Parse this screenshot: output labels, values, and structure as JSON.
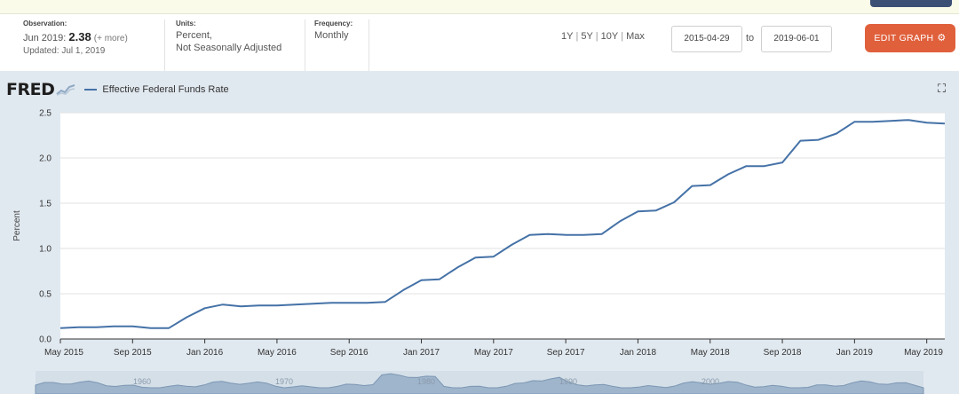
{
  "observation": {
    "heading": "Observation:",
    "period": "Jun 2019:",
    "value": "2.38",
    "more": "(+ more)",
    "updated": "Updated: Jul 1, 2019"
  },
  "units": {
    "heading": "Units:",
    "line1": "Percent,",
    "line2": "Not Seasonally Adjusted"
  },
  "frequency": {
    "heading": "Frequency:",
    "value": "Monthly"
  },
  "ranges": [
    "1Y",
    "5Y",
    "10Y",
    "Max"
  ],
  "date_range": {
    "start": "2015-04-29",
    "to_label": "to",
    "end": "2019-06-01"
  },
  "edit_button": {
    "label": "EDIT GRAPH"
  },
  "brand": {
    "logo": "FRED"
  },
  "colors": {
    "series": "#4572a7",
    "accent": "#e0603c",
    "panel": "#e1e9f0"
  },
  "chart_data": {
    "type": "line",
    "ylabel": "Percent",
    "ylim": [
      0,
      2.5
    ],
    "yticks": [
      "0.0",
      "0.5",
      "1.0",
      "1.5",
      "2.0",
      "2.5"
    ],
    "grid": true,
    "legend_position": "top-left",
    "x_tick_labels": [
      "May 2015",
      "Sep 2015",
      "Jan 2016",
      "May 2016",
      "Sep 2016",
      "Jan 2017",
      "May 2017",
      "Sep 2017",
      "Jan 2018",
      "May 2018",
      "Sep 2018",
      "Jan 2019",
      "May 2019"
    ],
    "x_start": "2015-05",
    "series": [
      {
        "name": "Effective Federal Funds Rate",
        "x": [
          "2015-05",
          "2015-06",
          "2015-07",
          "2015-08",
          "2015-09",
          "2015-10",
          "2015-11",
          "2015-12",
          "2016-01",
          "2016-02",
          "2016-03",
          "2016-04",
          "2016-05",
          "2016-06",
          "2016-07",
          "2016-08",
          "2016-09",
          "2016-10",
          "2016-11",
          "2016-12",
          "2017-01",
          "2017-02",
          "2017-03",
          "2017-04",
          "2017-05",
          "2017-06",
          "2017-07",
          "2017-08",
          "2017-09",
          "2017-10",
          "2017-11",
          "2017-12",
          "2018-01",
          "2018-02",
          "2018-03",
          "2018-04",
          "2018-05",
          "2018-06",
          "2018-07",
          "2018-08",
          "2018-09",
          "2018-10",
          "2018-11",
          "2018-12",
          "2019-01",
          "2019-02",
          "2019-03",
          "2019-04",
          "2019-05",
          "2019-06"
        ],
        "values": [
          0.12,
          0.13,
          0.13,
          0.14,
          0.14,
          0.12,
          0.12,
          0.24,
          0.34,
          0.38,
          0.36,
          0.37,
          0.37,
          0.38,
          0.39,
          0.4,
          0.4,
          0.4,
          0.41,
          0.54,
          0.65,
          0.66,
          0.79,
          0.9,
          0.91,
          1.04,
          1.15,
          1.16,
          1.15,
          1.15,
          1.16,
          1.3,
          1.41,
          1.42,
          1.51,
          1.69,
          1.7,
          1.82,
          1.91,
          1.91,
          1.95,
          2.19,
          2.2,
          2.27,
          2.4,
          2.4,
          2.41,
          2.42,
          2.39,
          2.38
        ]
      }
    ]
  },
  "overview_labels": [
    "1960",
    "1970",
    "1980",
    "1990",
    "2000"
  ]
}
